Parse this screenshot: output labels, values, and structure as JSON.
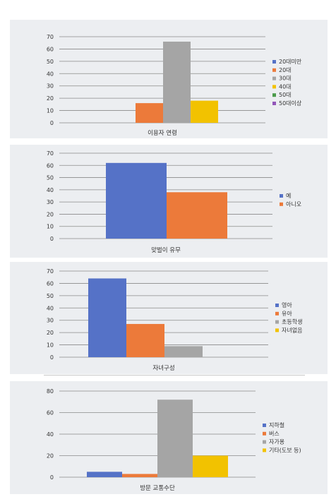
{
  "chart_data": [
    {
      "type": "bar",
      "title": "이용자 연령",
      "categories": [
        "이용자 연령"
      ],
      "series": [
        {
          "name": "20대미만",
          "values": [
            0
          ],
          "color": "#5572c7"
        },
        {
          "name": "20대",
          "values": [
            16
          ],
          "color": "#ec7a3a"
        },
        {
          "name": "30대",
          "values": [
            66
          ],
          "color": "#a5a5a5"
        },
        {
          "name": "40대",
          "values": [
            18
          ],
          "color": "#f2c200"
        },
        {
          "name": "50대",
          "values": [
            0
          ],
          "color": "#4a9a4a"
        },
        {
          "name": "50대이상",
          "values": [
            0
          ],
          "color": "#9256b9"
        }
      ],
      "ylim": [
        0,
        70
      ],
      "yticks": [
        "0",
        "10",
        "20",
        "30",
        "40",
        "50",
        "60",
        "70"
      ],
      "grid": true,
      "legend": "right"
    },
    {
      "type": "bar",
      "title": "맞벌이 유무",
      "categories": [
        "맞벌이 유무"
      ],
      "series": [
        {
          "name": "예",
          "values": [
            62
          ],
          "color": "#5572c7"
        },
        {
          "name": "아니오",
          "values": [
            38
          ],
          "color": "#ec7a3a"
        }
      ],
      "ylim": [
        0,
        70
      ],
      "yticks": [
        "0",
        "10",
        "20",
        "30",
        "40",
        "50",
        "60",
        "70"
      ],
      "grid": true,
      "legend": "right"
    },
    {
      "type": "bar",
      "title": "자녀구성",
      "categories": [
        "자녀구성"
      ],
      "series": [
        {
          "name": "영아",
          "values": [
            64
          ],
          "color": "#5572c7"
        },
        {
          "name": "유아",
          "values": [
            27
          ],
          "color": "#ec7a3a"
        },
        {
          "name": "초등학생",
          "values": [
            9
          ],
          "color": "#a5a5a5"
        },
        {
          "name": "자녀없음",
          "values": [
            0
          ],
          "color": "#f2c200"
        }
      ],
      "ylim": [
        0,
        70
      ],
      "yticks": [
        "0",
        "10",
        "20",
        "30",
        "40",
        "50",
        "60",
        "70"
      ],
      "grid": true,
      "legend": "right"
    },
    {
      "type": "bar",
      "title": "방문 교통수단",
      "categories": [
        "방문 교통수단"
      ],
      "series": [
        {
          "name": "지하철",
          "values": [
            5
          ],
          "color": "#5572c7"
        },
        {
          "name": "버스",
          "values": [
            3
          ],
          "color": "#ec7a3a"
        },
        {
          "name": "자가용",
          "values": [
            72
          ],
          "color": "#a5a5a5"
        },
        {
          "name": "기타(도보 등)",
          "values": [
            20
          ],
          "color": "#f2c200"
        }
      ],
      "ylim": [
        0,
        80
      ],
      "yticks": [
        "0",
        "20",
        "40",
        "60",
        "80"
      ],
      "grid": true,
      "legend": "right"
    }
  ],
  "colors": {
    "panel_bg": "#eceef1",
    "grid": "#8a8a8a",
    "text": "#333333"
  }
}
